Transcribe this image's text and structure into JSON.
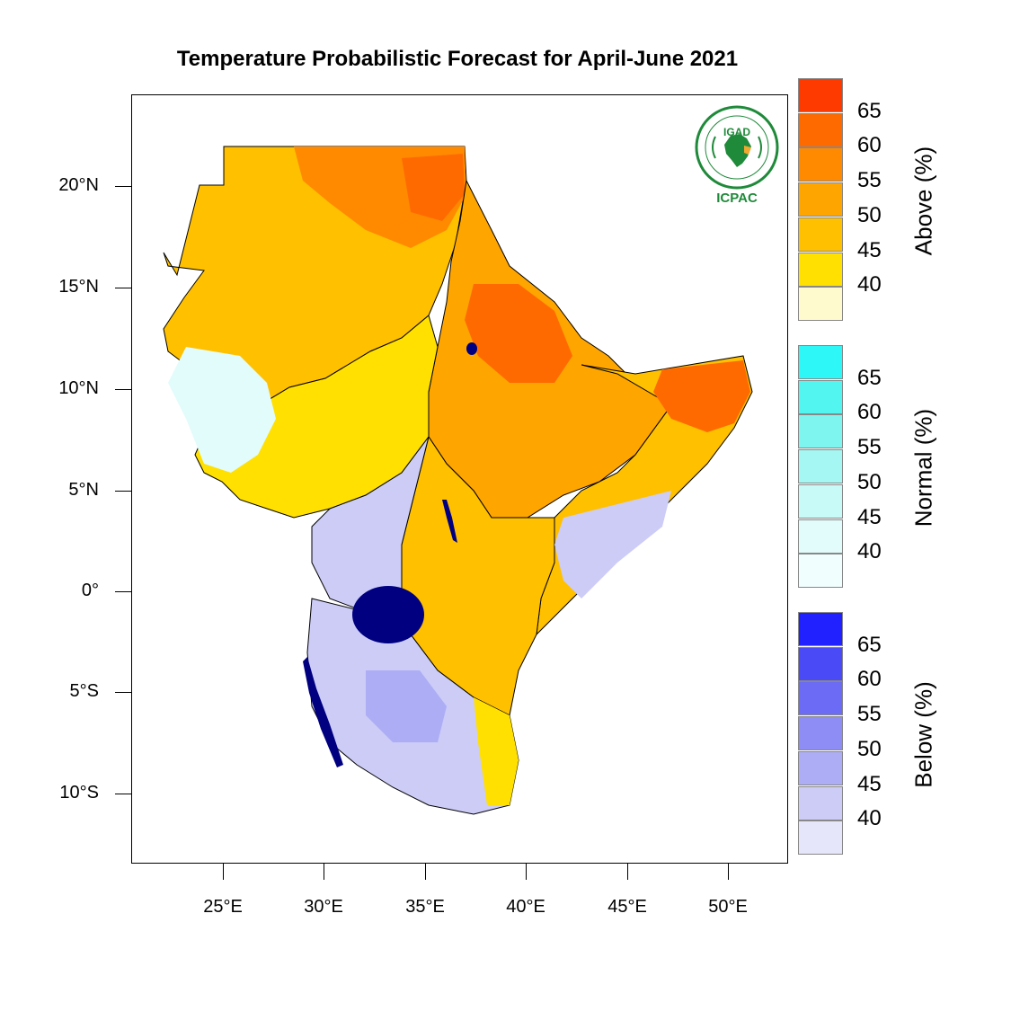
{
  "title": "Temperature Probabilistic Forecast for April-June 2021",
  "lat_ticks": [
    "20°N",
    "15°N",
    "10°N",
    "5°N",
    "0°",
    "5°S",
    "10°S"
  ],
  "lon_ticks": [
    "25°E",
    "30°E",
    "35°E",
    "40°E",
    "45°E",
    "50°E"
  ],
  "legends": [
    {
      "title": "Above (%)",
      "labels": [
        "65",
        "60",
        "55",
        "50",
        "45",
        "40"
      ],
      "colors": [
        "#ff3a00",
        "#ff6a00",
        "#ff8a00",
        "#ffa500",
        "#ffc000",
        "#ffe000",
        "#fffacd"
      ]
    },
    {
      "title": "Normal (%)",
      "labels": [
        "65",
        "60",
        "55",
        "50",
        "45",
        "40"
      ],
      "colors": [
        "#2ef7f7",
        "#52f5f0",
        "#7ef5ee",
        "#a4f7f2",
        "#c8faf7",
        "#e2fcfb",
        "#f1fefe"
      ]
    },
    {
      "title": "Below (%)",
      "labels": [
        "65",
        "60",
        "55",
        "50",
        "45",
        "40"
      ],
      "colors": [
        "#2121ff",
        "#4a4af7",
        "#6b6bf5",
        "#8d8df5",
        "#adadf5",
        "#ccccf7",
        "#e6e6fb"
      ]
    }
  ],
  "logo": {
    "top_text": "IGAD",
    "bottom_text": "ICPAC",
    "color": "#1f8a3a"
  }
}
